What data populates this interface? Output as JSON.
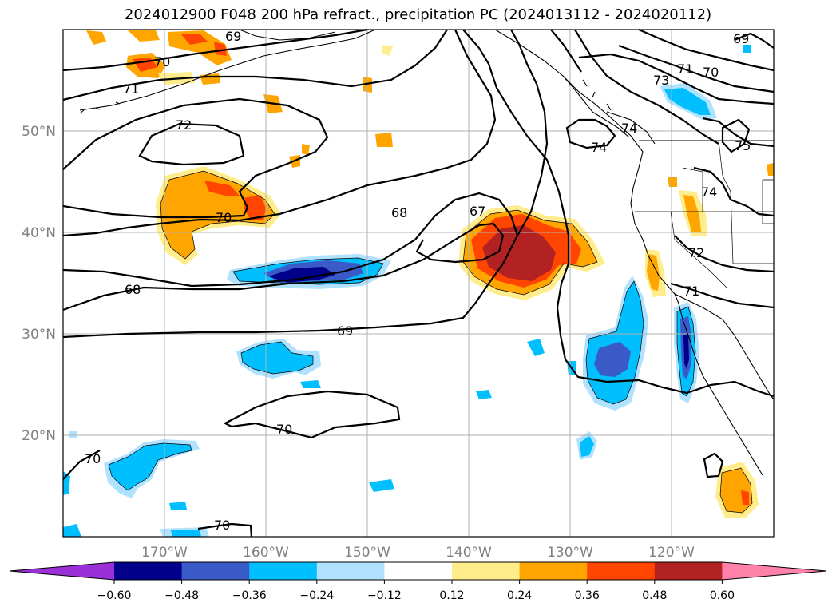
{
  "title": "2024012900 F048 200 hPa refract., precipitation PC (2024013112 - 2024020112)",
  "map": {
    "lon_labels": [
      "170°W",
      "160°W",
      "150°W",
      "140°W",
      "130°W",
      "120°W"
    ],
    "lat_labels": [
      "50°N",
      "40°N",
      "30°N",
      "20°N"
    ],
    "contour_labels": [
      "69",
      "70",
      "71",
      "72",
      "70",
      "68",
      "68",
      "67",
      "69",
      "70",
      "70",
      "70",
      "69",
      "71",
      "70",
      "73",
      "74",
      "74",
      "75",
      "74",
      "72",
      "71"
    ]
  },
  "colorbar": {
    "ticks": [
      "−0.60",
      "−0.48",
      "−0.36",
      "−0.24",
      "−0.12",
      "0.12",
      "0.24",
      "0.36",
      "0.48",
      "0.60"
    ],
    "colors": [
      "#9b30d9",
      "#00008b",
      "#3a5bc7",
      "#00bfff",
      "#b0e2ff",
      "#ffffff",
      "#ffec8b",
      "#ffa500",
      "#ff4500",
      "#b22222",
      "#ff82ab"
    ]
  },
  "chart_data": {
    "type": "map",
    "title": "2024012900 F048 200 hPa refract., precipitation PC (2024013112 - 2024020112)",
    "lon_range": [
      -180,
      -110
    ],
    "lat_range": [
      10,
      60
    ],
    "lon_ticks": [
      -170,
      -160,
      -150,
      -140,
      -130,
      -120
    ],
    "lat_ticks": [
      50,
      40,
      30,
      20
    ],
    "grid": true,
    "contour_levels": [
      67,
      68,
      69,
      70,
      71,
      72,
      73,
      74,
      75
    ],
    "colorbar_bounds": [
      -0.6,
      -0.48,
      -0.36,
      -0.24,
      -0.12,
      0.12,
      0.24,
      0.36,
      0.48,
      0.6
    ],
    "colorbar_extend": "both"
  }
}
